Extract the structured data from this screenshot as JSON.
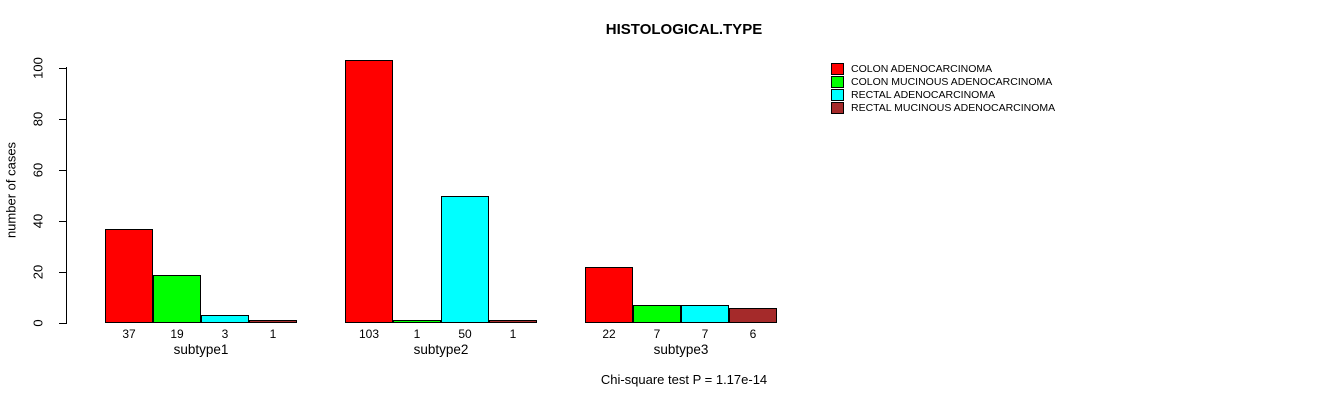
{
  "chart_data": {
    "type": "bar",
    "title": "HISTOLOGICAL.TYPE",
    "ylabel": "number of cases",
    "xlabel": "",
    "categories": [
      "subtype1",
      "subtype2",
      "subtype3"
    ],
    "series": [
      {
        "name": "COLON ADENOCARCINOMA",
        "color": "#FF0000",
        "values": [
          37,
          103,
          22
        ]
      },
      {
        "name": "COLON MUCINOUS ADENOCARCINOMA",
        "color": "#00FF00",
        "values": [
          19,
          1,
          7
        ]
      },
      {
        "name": "RECTAL ADENOCARCINOMA",
        "color": "#00FFFF",
        "values": [
          3,
          50,
          7
        ]
      },
      {
        "name": "RECTAL MUCINOUS ADENOCARCINOMA",
        "color": "#A52A2A",
        "values": [
          1,
          1,
          6
        ]
      }
    ],
    "yticks": [
      0,
      20,
      40,
      60,
      80,
      100
    ],
    "ylim": [
      0,
      105
    ],
    "grid": false,
    "bar_value_labels_shown": true,
    "legend_position": "top-right",
    "annotation": "Chi-square test P = 1.17e-14",
    "bar_border_color": "#000000"
  }
}
